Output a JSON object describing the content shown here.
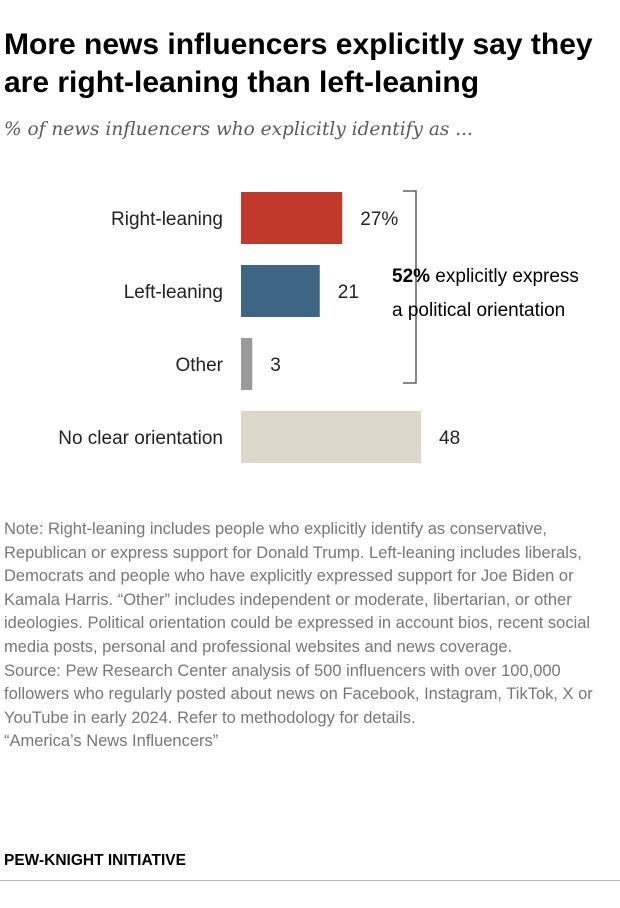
{
  "title": "More news influencers explicitly say they are right-leaning than left-leaning",
  "subtitle": "% of news influencers who explicitly identify as ...",
  "chart_data": {
    "type": "bar",
    "orientation": "horizontal",
    "categories": [
      "Right-leaning",
      "Left-leaning",
      "Other",
      "No clear orientation"
    ],
    "values": [
      27,
      21,
      3,
      48
    ],
    "value_labels": [
      "27%",
      "21",
      "3",
      "48"
    ],
    "colors": [
      "#c0392b",
      "#3f6584",
      "#9a9a9a",
      "#dcd9ca"
    ],
    "annotation": {
      "bold": "52%",
      "line1": " explicitly express",
      "line2": "a political orientation"
    }
  },
  "note": "Note: Right-leaning includes people who explicitly identify as conservative, Republican or express support for Donald Trump. Left-leaning includes liberals, Democrats and people who have explicitly expressed support for Joe Biden or Kamala Harris. “Other” includes independent or moderate, libertarian, or other ideologies. Political orientation could be expressed in account bios, recent social media posts, personal and professional websites and news coverage.",
  "source": "Source: Pew Research Center analysis of 500 influencers with over 100,000 followers who regularly posted about news on Facebook, Instagram, TikTok, X or YouTube in early 2024. Refer to methodology for details.",
  "report": "“America’s News Influencers”",
  "footer": "PEW-KNIGHT INITIATIVE"
}
